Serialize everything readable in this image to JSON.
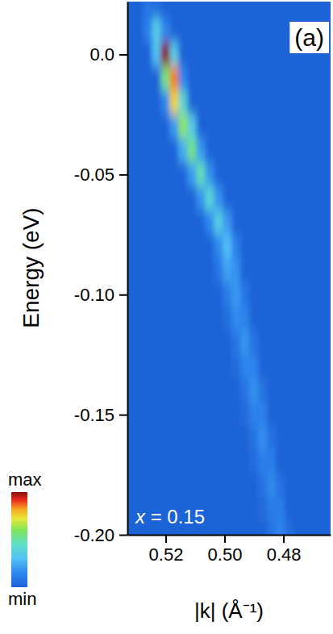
{
  "chart_data": {
    "type": "heatmap",
    "x_label": "|k| (Å⁻¹)",
    "y_label": "Energy (eV)",
    "annotations": [
      "(a)",
      "x = 0.15"
    ],
    "x": [
      0.532,
      0.529,
      0.526,
      0.523,
      0.52,
      0.517,
      0.514,
      0.511,
      0.508,
      0.505,
      0.502,
      0.499,
      0.496,
      0.493,
      0.49,
      0.487,
      0.484,
      0.481,
      0.478,
      0.475,
      0.472,
      0.469,
      0.466
    ],
    "y": [
      0.02,
      0.01,
      0,
      -0.01,
      -0.02,
      -0.03,
      -0.04,
      -0.05,
      -0.06,
      -0.07,
      -0.08,
      -0.09,
      -0.1,
      -0.11,
      -0.12,
      -0.13,
      -0.14,
      -0.15,
      -0.16,
      -0.17,
      -0.18,
      -0.19,
      -0.2
    ],
    "cells": [
      [
        0,
        0,
        0.08,
        0.05,
        0,
        0,
        0,
        0,
        0,
        0,
        0,
        0,
        0,
        0,
        0,
        0,
        0,
        0,
        0,
        0,
        0,
        0,
        0
      ],
      [
        0,
        0,
        0.12,
        0.35,
        0.15,
        0,
        0,
        0,
        0,
        0,
        0,
        0,
        0,
        0,
        0,
        0,
        0,
        0,
        0,
        0,
        0,
        0,
        0
      ],
      [
        0,
        0,
        0,
        0.3,
        1,
        0.35,
        0,
        0,
        0,
        0,
        0,
        0,
        0,
        0,
        0,
        0,
        0,
        0,
        0,
        0,
        0,
        0,
        0
      ],
      [
        0,
        0,
        0,
        0,
        0.55,
        0.85,
        0.15,
        0,
        0,
        0,
        0,
        0,
        0,
        0,
        0,
        0,
        0,
        0,
        0,
        0,
        0,
        0,
        0
      ],
      [
        0,
        0,
        0,
        0,
        0.15,
        0.75,
        0.4,
        0,
        0,
        0,
        0,
        0,
        0,
        0,
        0,
        0,
        0,
        0,
        0,
        0,
        0,
        0,
        0
      ],
      [
        0,
        0,
        0,
        0,
        0,
        0.2,
        0.62,
        0.35,
        0,
        0,
        0,
        0,
        0,
        0,
        0,
        0,
        0,
        0,
        0,
        0,
        0,
        0,
        0
      ],
      [
        0,
        0,
        0,
        0,
        0,
        0,
        0.25,
        0.55,
        0.2,
        0,
        0,
        0,
        0,
        0,
        0,
        0,
        0,
        0,
        0,
        0,
        0,
        0,
        0
      ],
      [
        0,
        0,
        0,
        0,
        0,
        0,
        0,
        0.2,
        0.48,
        0.18,
        0,
        0,
        0,
        0,
        0,
        0,
        0,
        0,
        0,
        0,
        0,
        0,
        0
      ],
      [
        0,
        0,
        0,
        0,
        0,
        0,
        0,
        0,
        0.18,
        0.4,
        0.18,
        0,
        0,
        0,
        0,
        0,
        0,
        0,
        0,
        0,
        0,
        0,
        0
      ],
      [
        0,
        0,
        0,
        0,
        0,
        0,
        0,
        0,
        0,
        0.15,
        0.36,
        0.2,
        0,
        0,
        0,
        0,
        0,
        0,
        0,
        0,
        0,
        0,
        0
      ],
      [
        0,
        0,
        0,
        0,
        0,
        0,
        0,
        0,
        0,
        0,
        0.15,
        0.3,
        0.12,
        0,
        0,
        0,
        0,
        0,
        0,
        0,
        0,
        0,
        0
      ],
      [
        0,
        0,
        0,
        0,
        0,
        0,
        0,
        0,
        0,
        0,
        0.08,
        0.22,
        0.18,
        0,
        0,
        0,
        0,
        0,
        0,
        0,
        0,
        0,
        0
      ],
      [
        0,
        0,
        0,
        0,
        0,
        0,
        0,
        0,
        0,
        0,
        0,
        0.1,
        0.2,
        0.08,
        0,
        0,
        0,
        0,
        0,
        0,
        0,
        0,
        0
      ],
      [
        0,
        0,
        0,
        0,
        0,
        0,
        0,
        0,
        0,
        0,
        0,
        0.05,
        0.16,
        0.14,
        0,
        0,
        0,
        0,
        0,
        0,
        0,
        0,
        0
      ],
      [
        0,
        0,
        0,
        0,
        0,
        0,
        0,
        0,
        0,
        0,
        0,
        0,
        0.08,
        0.19,
        0.07,
        0,
        0,
        0,
        0,
        0,
        0,
        0,
        0
      ],
      [
        0,
        0,
        0,
        0,
        0,
        0,
        0,
        0,
        0,
        0,
        0,
        0,
        0.04,
        0.14,
        0.14,
        0,
        0,
        0,
        0,
        0,
        0,
        0,
        0
      ],
      [
        0,
        0,
        0,
        0,
        0,
        0,
        0,
        0,
        0,
        0,
        0,
        0,
        0,
        0.07,
        0.18,
        0.07,
        0,
        0,
        0,
        0,
        0,
        0,
        0
      ],
      [
        0,
        0,
        0,
        0,
        0,
        0,
        0,
        0,
        0,
        0,
        0,
        0,
        0,
        0.04,
        0.13,
        0.13,
        0,
        0,
        0,
        0,
        0,
        0,
        0
      ],
      [
        0,
        0,
        0,
        0,
        0,
        0,
        0,
        0,
        0,
        0,
        0,
        0,
        0,
        0,
        0.07,
        0.17,
        0.06,
        0,
        0,
        0,
        0,
        0,
        0
      ],
      [
        0,
        0,
        0,
        0,
        0,
        0,
        0,
        0,
        0,
        0,
        0,
        0,
        0,
        0,
        0.04,
        0.12,
        0.12,
        0,
        0,
        0,
        0,
        0,
        0
      ],
      [
        0,
        0,
        0,
        0,
        0,
        0,
        0,
        0,
        0,
        0,
        0,
        0,
        0,
        0,
        0,
        0.06,
        0.16,
        0.06,
        0,
        0,
        0,
        0,
        0
      ],
      [
        0,
        0,
        0,
        0,
        0,
        0,
        0,
        0,
        0,
        0,
        0,
        0,
        0,
        0,
        0,
        0.03,
        0.1,
        0.12,
        0,
        0,
        0,
        0,
        0
      ],
      [
        0,
        0,
        0,
        0,
        0,
        0,
        0,
        0,
        0,
        0,
        0,
        0,
        0,
        0,
        0,
        0,
        0.06,
        0.15,
        0.05,
        0,
        0,
        0,
        0
      ]
    ],
    "xlim": [
      0.533,
      0.464
    ],
    "ylim": [
      -0.2,
      0.022
    ],
    "xticks": [
      0.52,
      {
        "value": 0.5,
        "label": "0.50"
      },
      0.48
    ],
    "yticks": [
      {
        "value": 0,
        "label": "0.0"
      },
      -0.05,
      {
        "value": -0.1,
        "label": "-0.10"
      },
      -0.15,
      {
        "value": -0.2,
        "label": "-0.20"
      }
    ],
    "colorbar": {
      "range": [
        0,
        1
      ],
      "ticks": [
        {
          "value": 0,
          "label": "min"
        },
        {
          "value": 1,
          "label": "max"
        }
      ]
    }
  }
}
